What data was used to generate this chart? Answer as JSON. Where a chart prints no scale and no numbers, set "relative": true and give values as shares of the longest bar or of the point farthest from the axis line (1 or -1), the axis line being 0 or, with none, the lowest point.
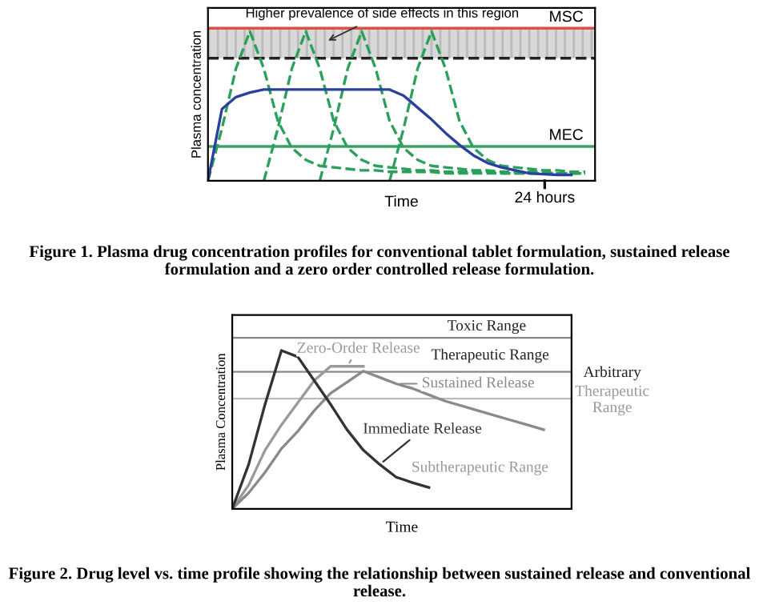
{
  "chart_data": [
    {
      "type": "line",
      "relative": true,
      "xlabel": "Time",
      "ylabel": "Plasma concentration",
      "title": "Figure 1. Plasma drug concentration profiles for conventional tablet formulation, sustained release formulation and a zero order controlled release formulation.",
      "categories": [
        null,
        null,
        null,
        null,
        null,
        null,
        null,
        null,
        null,
        null,
        null,
        null,
        null,
        null,
        null,
        null,
        null,
        null,
        null,
        null,
        null,
        null,
        null,
        null,
        null,
        null,
        null,
        null
      ],
      "series": [
        {
          "color": "#2aa05a",
          "line_style": "dashed",
          "values": [
            0,
            0.35,
            0.75,
            1,
            0.75,
            0.4,
            0.22,
            0.14,
            0.1,
            0.09,
            0.08,
            0.07,
            0.07,
            0.06,
            0.06,
            0.06,
            0.06,
            0.05,
            0.05,
            0.05,
            0.05,
            0.05,
            0.05,
            0.05,
            0.05,
            0.05,
            0.05,
            0.05
          ]
        },
        {
          "color": "#2aa05a",
          "line_style": "dashed",
          "values": [
            null,
            null,
            null,
            null,
            0,
            0.35,
            0.75,
            1,
            0.75,
            0.4,
            0.22,
            0.14,
            0.1,
            0.09,
            0.08,
            0.07,
            0.07,
            0.06,
            0.06,
            0.06,
            0.06,
            0.05,
            0.05,
            0.05,
            0.05,
            0.05,
            0.05,
            0.05
          ]
        },
        {
          "color": "#2aa05a",
          "line_style": "dashed",
          "values": [
            null,
            null,
            null,
            null,
            null,
            null,
            null,
            null,
            0,
            0.35,
            0.75,
            1,
            0.75,
            0.4,
            0.22,
            0.14,
            0.1,
            0.09,
            0.08,
            0.07,
            0.07,
            0.06,
            0.06,
            0.06,
            0.06,
            0.05,
            0.05,
            0.05
          ]
        },
        {
          "color": "#2aa05a",
          "line_style": "dashed",
          "values": [
            null,
            null,
            null,
            null,
            null,
            null,
            null,
            null,
            null,
            null,
            null,
            null,
            null,
            0,
            0.35,
            0.75,
            1,
            0.75,
            0.4,
            0.22,
            0.14,
            0.1,
            0.09,
            0.08,
            0.07,
            0.07,
            0.06,
            0.06
          ]
        },
        {
          "color": "#2a3f9e",
          "line_style": "solid",
          "values": [
            0,
            0.48,
            0.56,
            0.59,
            0.61,
            0.61,
            0.61,
            0.61,
            0.61,
            0.61,
            0.61,
            0.61,
            0.61,
            0.61,
            0.57,
            0.49,
            0.41,
            0.32,
            0.24,
            0.17,
            0.12,
            0.09,
            0.07,
            0.05,
            0.045,
            0.04,
            0.04,
            null
          ]
        }
      ],
      "ref_lines": [
        {
          "axis": "y",
          "value": 1.02,
          "label": "MSC",
          "color": "#e05040",
          "line_style": "solid"
        },
        {
          "axis": "y",
          "value": 0.82,
          "label": null,
          "color": "#222222",
          "line_style": "dashed"
        },
        {
          "axis": "y",
          "value": 0.23,
          "label": "MEC",
          "color": "#3aa060",
          "line_style": "solid"
        }
      ],
      "bands": [
        {
          "axis": "y",
          "from": 0.82,
          "to": 1.02,
          "label": null,
          "color": "#d8d8d8"
        }
      ],
      "annotations": [
        "Higher prevalence of side effects in this region",
        "24 hours"
      ]
    },
    {
      "type": "line",
      "relative": true,
      "xlabel": "Time",
      "ylabel": "Plasma Concentration",
      "title": "Figure 2. Drug level vs. time profile showing the relationship between sustained release and conventional release.",
      "categories": [
        null,
        null,
        null,
        null,
        null,
        null,
        null,
        null,
        null,
        null,
        null,
        null,
        null,
        null,
        null,
        null,
        null,
        null,
        null,
        null,
        null
      ],
      "series": [
        {
          "name": "Zero-Order Release",
          "color": "#9a9a9a",
          "line_style": "solid",
          "values": [
            0,
            0.15,
            0.37,
            0.53,
            0.67,
            0.81,
            0.9,
            0.9,
            0.9,
            null,
            null,
            null,
            null,
            null,
            null,
            null,
            null,
            null,
            null,
            null,
            null
          ]
        },
        {
          "name": "Sustained Release",
          "color": "#8a8a8a",
          "line_style": "solid",
          "values": [
            0,
            0.1,
            0.23,
            0.38,
            0.49,
            0.62,
            0.73,
            0.8,
            0.87,
            0.83,
            0.79,
            0.76,
            0.72,
            0.68,
            0.65,
            0.62,
            0.59,
            0.56,
            0.53,
            0.5,
            null
          ]
        },
        {
          "name": "Immediate Release",
          "color": "#333333",
          "line_style": "solid",
          "values": [
            0,
            0.28,
            0.66,
            1,
            0.96,
            0.81,
            0.66,
            0.5,
            0.37,
            0.28,
            0.2,
            0.165,
            0.135,
            null,
            null,
            null,
            null,
            null,
            null,
            null,
            null
          ]
        }
      ],
      "ref_lines": [
        {
          "axis": "y",
          "value": 1.08,
          "label": null,
          "color": "#888888",
          "line_style": "solid"
        },
        {
          "axis": "y",
          "value": 0.865,
          "label": null,
          "color": "#888888",
          "line_style": "solid"
        },
        {
          "axis": "y",
          "value": 0.696,
          "label": null,
          "color": "#bbbbbb",
          "line_style": "solid"
        }
      ],
      "annotations": [
        "Toxic Range",
        "Therapeutic Range",
        "Arbitrary",
        "Therapeutic Range",
        "Subtherapeutic Range"
      ]
    }
  ]
}
